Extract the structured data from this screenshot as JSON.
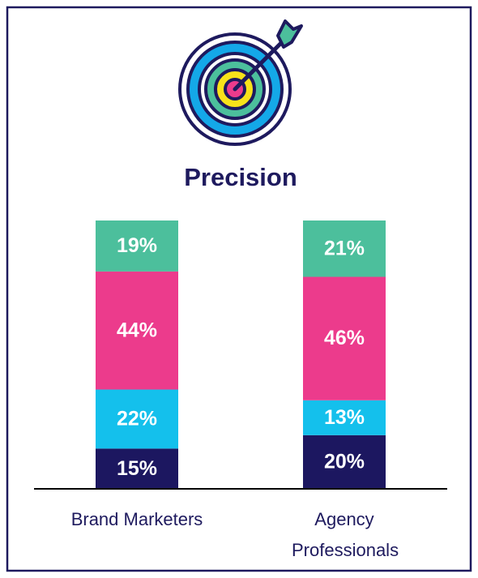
{
  "chart_data": {
    "type": "stacked_bar",
    "title": "Precision",
    "categories": [
      "Brand Marketers",
      "Agency Professionals"
    ],
    "series": [
      {
        "color": "#1c1760",
        "values": [
          15,
          20
        ],
        "value_labels": [
          "15%",
          "20%"
        ]
      },
      {
        "color": "#14c0ec",
        "values": [
          22,
          13
        ],
        "value_labels": [
          "22%",
          "13%"
        ]
      },
      {
        "color": "#ec3b8c",
        "values": [
          44,
          46
        ],
        "value_labels": [
          "44%",
          "46%"
        ]
      },
      {
        "color": "#4cbf9c",
        "values": [
          19,
          21
        ],
        "value_labels": [
          "19%",
          "21%"
        ]
      }
    ],
    "ylim": [
      0,
      100
    ]
  }
}
